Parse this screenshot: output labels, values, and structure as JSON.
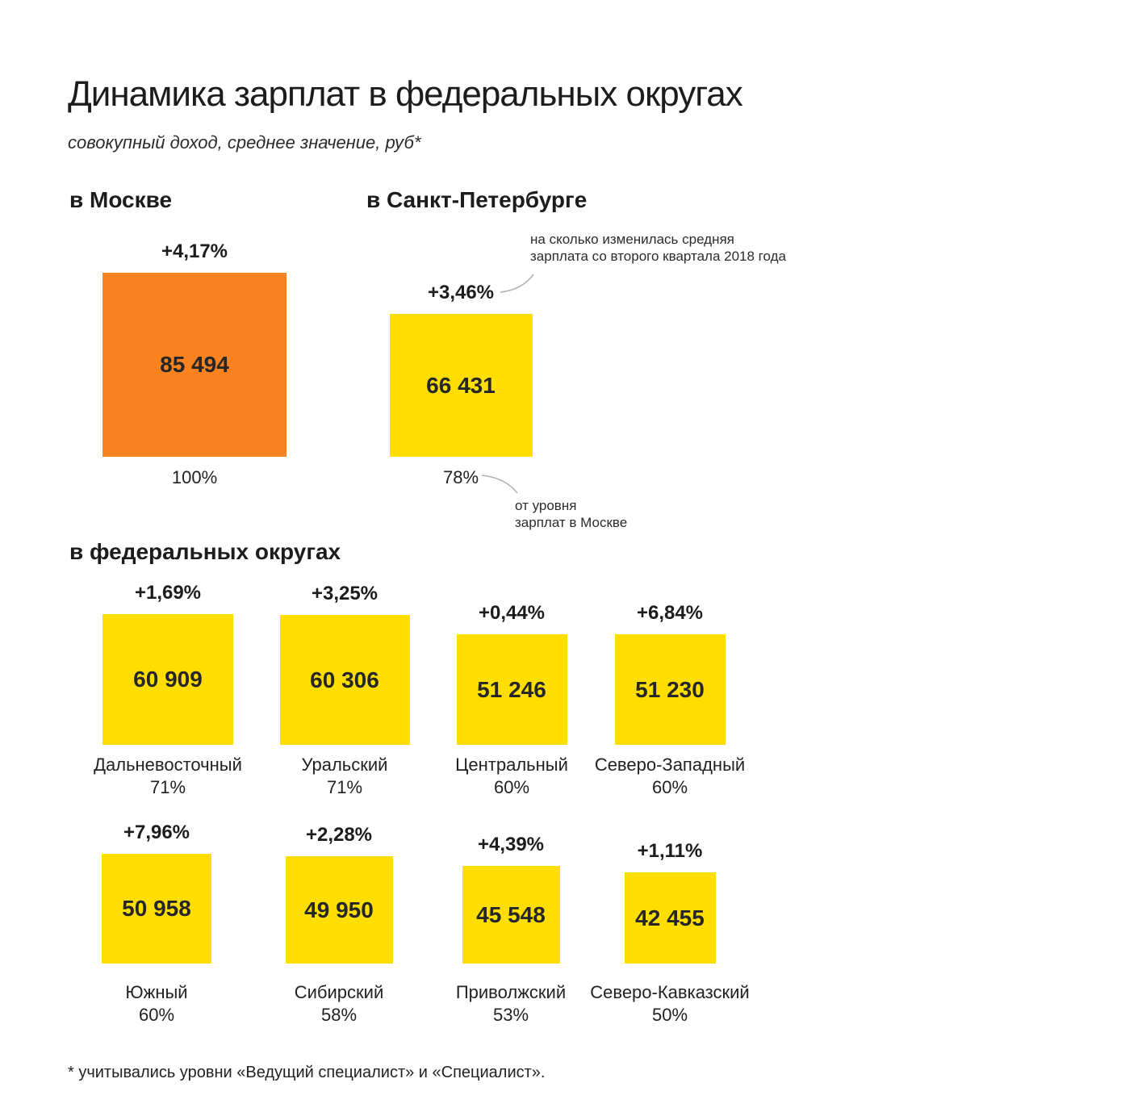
{
  "title": "Динамика зарплат в федеральных округах",
  "subtitle": "совокупный доход, среднее значение, руб*",
  "moscow": {
    "header": "в Москве",
    "change": "+4,17%",
    "value": "85 494",
    "percent": "100%"
  },
  "spb": {
    "header": "в Санкт-Петербурге",
    "change": "+3,46%",
    "value": "66 431",
    "percent": "78%",
    "note_change": "на сколько изменилась средняя\nзарплата со второго квартала 2018 года",
    "note_level": "от уровня\nзарплат в Москве"
  },
  "districts": {
    "header": "в федеральных округах",
    "items": [
      {
        "name": "Дальневосточный",
        "change": "+1,69%",
        "value": "60 909",
        "percent": "71%"
      },
      {
        "name": "Уральский",
        "change": "+3,25%",
        "value": "60 306",
        "percent": "71%"
      },
      {
        "name": "Центральный",
        "change": "+0,44%",
        "value": "51 246",
        "percent": "60%"
      },
      {
        "name": "Северо-Западный",
        "change": "+6,84%",
        "value": "51 230",
        "percent": "60%"
      },
      {
        "name": "Южный",
        "change": "+7,96%",
        "value": "50 958",
        "percent": "60%"
      },
      {
        "name": "Сибирский",
        "change": "+2,28%",
        "value": "49 950",
        "percent": "58%"
      },
      {
        "name": "Приволжский",
        "change": "+4,39%",
        "value": "45 548",
        "percent": "53%"
      },
      {
        "name": "Северо-Кавказский",
        "change": "+1,11%",
        "value": "42 455",
        "percent": "50%"
      }
    ]
  },
  "footnote": "* учитывались уровни «Ведущий специалист» и «Специалист».",
  "colors": {
    "moscow_square": "#FA831F",
    "district_square": "#FFDE00",
    "text": "#222222",
    "connector": "#B0B0B0"
  },
  "chart_data": {
    "type": "bar",
    "variant": "proportional-square-area",
    "title": "Динамика зарплат в федеральных округах",
    "subtitle": "совокупный доход, среднее значение, руб*",
    "footnote": "* учитывались уровни «Ведущий специалист» и «Специалист».",
    "categories": [
      "Москва",
      "Санкт-Петербург",
      "Дальневосточный",
      "Уральский",
      "Центральный",
      "Северо-Западный",
      "Южный",
      "Сибирский",
      "Приволжский",
      "Северо-Кавказский"
    ],
    "series": [
      {
        "name": "средняя зарплата, руб",
        "values": [
          85494,
          66431,
          60909,
          60306,
          51246,
          51230,
          50958,
          49950,
          45548,
          42455
        ]
      },
      {
        "name": "изменение средней зарплаты со второго квартала 2018 года, %",
        "values": [
          4.17,
          3.46,
          1.69,
          3.25,
          0.44,
          6.84,
          7.96,
          2.28,
          4.39,
          1.11
        ]
      },
      {
        "name": "от уровня зарплат в Москве, %",
        "values": [
          100,
          78,
          71,
          71,
          60,
          60,
          60,
          58,
          53,
          50
        ]
      }
    ],
    "annotations": [
      "на сколько изменилась средняя зарплата со второго квартала 2018 года",
      "от уровня зарплат в Москве"
    ],
    "legend_position": "none",
    "grid": false
  }
}
